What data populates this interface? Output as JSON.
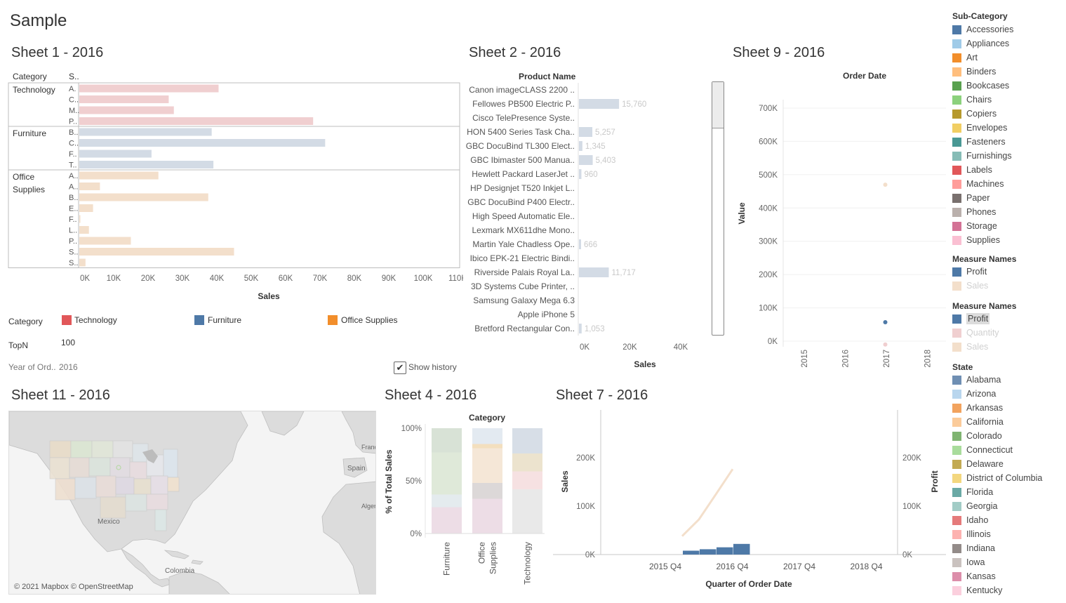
{
  "page": {
    "title": "Sample"
  },
  "sheet1": {
    "title": "Sheet 1 - 2016",
    "col_category": "Category",
    "col_sub": "S..",
    "xlabel": "Sales",
    "ticks": [
      "0K",
      "10K",
      "20K",
      "30K",
      "40K",
      "50K",
      "60K",
      "70K",
      "80K",
      "90K",
      "100K",
      "110K"
    ],
    "categories": [
      "Technology",
      "Furniture",
      "Office",
      "Supplies"
    ],
    "colors": {
      "Technology": "#f0cfd0",
      "Furniture": "#d3dbe5",
      "Office Supplies": "#f3dfcb"
    },
    "xmax": 110000,
    "rows": [
      {
        "label": "A.",
        "cat": "Technology",
        "value": 40500
      },
      {
        "label": "C..",
        "cat": "Technology",
        "value": 26000
      },
      {
        "label": "M..",
        "cat": "Technology",
        "value": 27500
      },
      {
        "label": "P..",
        "cat": "Technology",
        "value": 68000
      },
      {
        "label": "B..",
        "cat": "Furniture",
        "value": 38500
      },
      {
        "label": "C..",
        "cat": "Furniture",
        "value": 71500
      },
      {
        "label": "F..",
        "cat": "Furniture",
        "value": 21000
      },
      {
        "label": "T..",
        "cat": "Furniture",
        "value": 39000
      },
      {
        "label": "A..",
        "cat": "Office Supplies",
        "value": 23000
      },
      {
        "label": "A..",
        "cat": "Office Supplies",
        "value": 6000
      },
      {
        "label": "B..",
        "cat": "Office Supplies",
        "value": 37500
      },
      {
        "label": "E..",
        "cat": "Office Supplies",
        "value": 4000
      },
      {
        "label": "F..",
        "cat": "Office Supplies",
        "value": 200
      },
      {
        "label": "L..",
        "cat": "Office Supplies",
        "value": 2800
      },
      {
        "label": "P..",
        "cat": "Office Supplies",
        "value": 15000
      },
      {
        "label": "S..",
        "cat": "Office Supplies",
        "value": 45000
      },
      {
        "label": "S..",
        "cat": "Office Supplies",
        "value": 1800
      }
    ]
  },
  "filters": {
    "category_label": "Category",
    "category_items": [
      {
        "name": "Technology",
        "color": "#e15759"
      },
      {
        "name": "Furniture",
        "color": "#4e79a7"
      },
      {
        "name": "Office Supplies",
        "color": "#f28e2b"
      }
    ],
    "topn_label": "TopN",
    "topn_value": "100",
    "year_label": "Year of Ord..",
    "year_value": "2016",
    "show_history": "Show history"
  },
  "sheet2": {
    "title": "Sheet 2 - 2016",
    "header": "Product Name",
    "xlabel": "Sales",
    "ticks": [
      "0K",
      "20K",
      "40K"
    ],
    "xmax": 40000,
    "rows": [
      {
        "name": "Canon imageCLASS 2200 ..",
        "value": null,
        "label": ""
      },
      {
        "name": "Fellowes PB500 Electric P..",
        "value": 15760,
        "label": "15,760"
      },
      {
        "name": "Cisco TelePresence Syste..",
        "value": null,
        "label": ""
      },
      {
        "name": "HON 5400 Series Task Cha..",
        "value": 5257,
        "label": "5,257"
      },
      {
        "name": "GBC DocuBind TL300 Elect..",
        "value": 1345,
        "label": "1,345"
      },
      {
        "name": "GBC Ibimaster 500 Manua..",
        "value": 5403,
        "label": "5,403"
      },
      {
        "name": "Hewlett Packard LaserJet ..",
        "value": 960,
        "label": "960"
      },
      {
        "name": "HP Designjet T520 Inkjet L..",
        "value": null,
        "label": ""
      },
      {
        "name": "GBC DocuBind P400 Electr..",
        "value": null,
        "label": ""
      },
      {
        "name": "High Speed Automatic Ele..",
        "value": null,
        "label": ""
      },
      {
        "name": "Lexmark MX611dhe Mono..",
        "value": null,
        "label": ""
      },
      {
        "name": "Martin Yale Chadless Ope..",
        "value": 666,
        "label": "666"
      },
      {
        "name": "Ibico EPK-21 Electric Bindi..",
        "value": null,
        "label": ""
      },
      {
        "name": "Riverside Palais Royal La..",
        "value": 11717,
        "label": "11,717"
      },
      {
        "name": "3D Systems Cube Printer, ..",
        "value": null,
        "label": ""
      },
      {
        "name": "Samsung Galaxy Mega 6.3",
        "value": null,
        "label": ""
      },
      {
        "name": "Apple iPhone 5",
        "value": null,
        "label": ""
      },
      {
        "name": "Bretford Rectangular Con..",
        "value": 1053,
        "label": "1,053"
      }
    ]
  },
  "sheet9": {
    "title": "Sheet 9 - 2016",
    "header": "Order Date",
    "ylabel": "Value",
    "yticks": [
      "0K",
      "100K",
      "200K",
      "300K",
      "400K",
      "500K",
      "600K",
      "700K"
    ],
    "xticks": [
      "2015",
      "2016",
      "2017",
      "2018"
    ],
    "points": [
      {
        "x": "2016",
        "y": 470000,
        "color": "#f3dfcb"
      },
      {
        "x": "2016",
        "y": 57000,
        "color": "#4e79a7"
      },
      {
        "x": "2016",
        "y": -10000,
        "color": "#f0cfd0"
      }
    ]
  },
  "sheet11": {
    "title": "Sheet 11 - 2016",
    "map_labels": {
      "mexico": "Mexico",
      "colombia": "Colombia",
      "spain": "Spain",
      "france": "Franc",
      "algeria": "Alger"
    },
    "attribution": "© 2021 Mapbox © OpenStreetMap"
  },
  "sheet4": {
    "title": "Sheet 4 - 2016",
    "header": "Category",
    "ylabel": "% of Total Sales",
    "yticks": [
      "0%",
      "50%",
      "100%"
    ],
    "categories": [
      "Furniture",
      "Office Supplies",
      "Technology"
    ],
    "xlabels": [
      "Furniture",
      "Office\nSupplies",
      "Technology"
    ],
    "stacks": [
      [
        {
          "v": 25,
          "c": "#eddde6"
        },
        {
          "v": 12,
          "c": "#e4ebee"
        },
        {
          "v": 40,
          "c": "#dfe9d9"
        },
        {
          "v": 23,
          "c": "#d8e2d6"
        }
      ],
      [
        {
          "v": 33,
          "c": "#eddde6"
        },
        {
          "v": 15,
          "c": "#dcd8d8"
        },
        {
          "v": 33,
          "c": "#f5e7d7"
        },
        {
          "v": 4,
          "c": "#f3dfbe"
        },
        {
          "v": 15,
          "c": "#e3eaf1"
        }
      ],
      [
        {
          "v": 42,
          "c": "#e9e9e9"
        },
        {
          "v": 17,
          "c": "#f6e1e2"
        },
        {
          "v": 17,
          "c": "#ece3ce"
        },
        {
          "v": 24,
          "c": "#d7dee7"
        }
      ]
    ]
  },
  "sheet7": {
    "title": "Sheet 7 - 2016",
    "xlabel": "Quarter of Order Date",
    "ylabel_left": "Sales",
    "ylabel_right": "Profit",
    "yticks_left": [
      "0K",
      "100K",
      "200K"
    ],
    "yticks_right": [
      "0K",
      "100K",
      "200K"
    ],
    "xticks": [
      "2015 Q4",
      "2016 Q4",
      "2017 Q4",
      "2018 Q4"
    ],
    "bars_profit": [
      8000,
      11000,
      15000,
      22000
    ],
    "line_sales": [
      70000,
      90000,
      130000,
      185000
    ]
  },
  "legends": {
    "subcategory": {
      "title": "Sub-Category",
      "items": [
        {
          "name": "Accessories",
          "color": "#4e79a7"
        },
        {
          "name": "Appliances",
          "color": "#a0cbe8"
        },
        {
          "name": "Art",
          "color": "#f28e2b"
        },
        {
          "name": "Binders",
          "color": "#ffbe7d"
        },
        {
          "name": "Bookcases",
          "color": "#59a14f"
        },
        {
          "name": "Chairs",
          "color": "#8cd17d"
        },
        {
          "name": "Copiers",
          "color": "#b6992d"
        },
        {
          "name": "Envelopes",
          "color": "#f1ce63"
        },
        {
          "name": "Fasteners",
          "color": "#499894"
        },
        {
          "name": "Furnishings",
          "color": "#86bcb6"
        },
        {
          "name": "Labels",
          "color": "#e15759"
        },
        {
          "name": "Machines",
          "color": "#ff9d9a"
        },
        {
          "name": "Paper",
          "color": "#79706e"
        },
        {
          "name": "Phones",
          "color": "#bab0ac"
        },
        {
          "name": "Storage",
          "color": "#d37295"
        },
        {
          "name": "Supplies",
          "color": "#fabfd2"
        }
      ]
    },
    "measures1": {
      "title": "Measure Names",
      "items": [
        {
          "name": "Profit",
          "color": "#4e79a7",
          "faint": false
        },
        {
          "name": "Sales",
          "color": "#f3dfcb",
          "faint": true
        }
      ]
    },
    "measures2": {
      "title": "Measure Names",
      "items": [
        {
          "name": "Profit",
          "color": "#4e79a7",
          "faint": false,
          "highlight": true
        },
        {
          "name": "Quantity",
          "color": "#f0cfd0",
          "faint": true
        },
        {
          "name": "Sales",
          "color": "#f3dfcb",
          "faint": true
        }
      ]
    },
    "state": {
      "title": "State",
      "items": [
        {
          "name": "Alabama",
          "color": "#6f8fb3"
        },
        {
          "name": "Arizona",
          "color": "#b9d6ee"
        },
        {
          "name": "Arkansas",
          "color": "#f2a35e"
        },
        {
          "name": "California",
          "color": "#fbcb9a"
        },
        {
          "name": "Colorado",
          "color": "#7fb471"
        },
        {
          "name": "Connecticut",
          "color": "#a9dc9c"
        },
        {
          "name": "Delaware",
          "color": "#c2aa53"
        },
        {
          "name": "District of Columbia",
          "color": "#f3d77f"
        },
        {
          "name": "Florida",
          "color": "#6aa9a5"
        },
        {
          "name": "Georgia",
          "color": "#a2ccc6"
        },
        {
          "name": "Idaho",
          "color": "#e57a7a"
        },
        {
          "name": "Illinois",
          "color": "#fdb2b0"
        },
        {
          "name": "Indiana",
          "color": "#938b89"
        },
        {
          "name": "Iowa",
          "color": "#cac2bf"
        },
        {
          "name": "Kansas",
          "color": "#dc8eaa"
        },
        {
          "name": "Kentucky",
          "color": "#fbcfdd"
        }
      ]
    }
  }
}
